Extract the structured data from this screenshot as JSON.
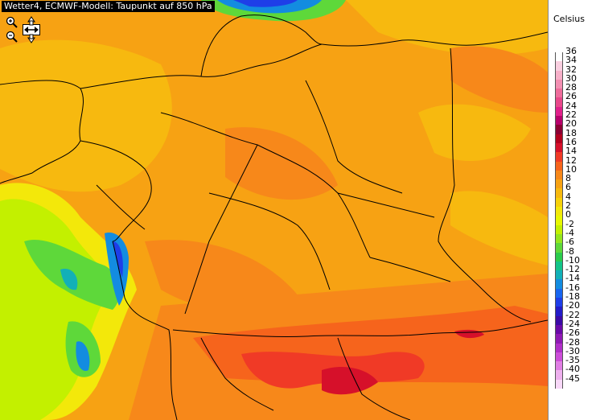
{
  "title": "Wetter4, ECMWF-Modell: Taupunkt auf 850 hPa",
  "toolbar": {
    "zoom_in": "zoom-in",
    "zoom_out": "zoom-out",
    "pan": "pan"
  },
  "legend": {
    "unit": "Celsius",
    "levels": [
      "36",
      "34",
      "32",
      "30",
      "28",
      "26",
      "24",
      "22",
      "20",
      "18",
      "16",
      "14",
      "12",
      "10",
      "8",
      "6",
      "4",
      "2",
      "0",
      "-2",
      "-4",
      "-6",
      "-8",
      "-10",
      "-12",
      "-14",
      "-16",
      "-18",
      "-20",
      "-22",
      "-24",
      "-26",
      "-28",
      "-30",
      "-35",
      "-40",
      "-45"
    ],
    "colors": [
      "#ffffff",
      "#f9cfe0",
      "#f7b0c9",
      "#f38fb2",
      "#ee6c9b",
      "#e8488a",
      "#e0208a",
      "#b7006b",
      "#8c0033",
      "#b3001e",
      "#d6102a",
      "#f03a26",
      "#f6641c",
      "#f7881a",
      "#f7a213",
      "#f7b90f",
      "#f7d10a",
      "#f3e80a",
      "#e8f700",
      "#c3f000",
      "#94e61e",
      "#5ed83a",
      "#2bcc4d",
      "#13c489",
      "#12b0b8",
      "#138ce0",
      "#1866f0",
      "#1e3ee8",
      "#231cc8",
      "#3b0aa6",
      "#6a0aa8",
      "#8f1ab4",
      "#b030c8",
      "#cc4ed8",
      "#e07ee4",
      "#eeb0ee",
      "#f8d8f8"
    ]
  },
  "colors": {
    "base_field": "#f7a213",
    "warm_field": "#f6641c",
    "hot_field": "#f03a26",
    "peak_field": "#d6102a",
    "cold_green": "#5ed83a",
    "cold_blue": "#138ce0",
    "border_line": "#000000"
  }
}
